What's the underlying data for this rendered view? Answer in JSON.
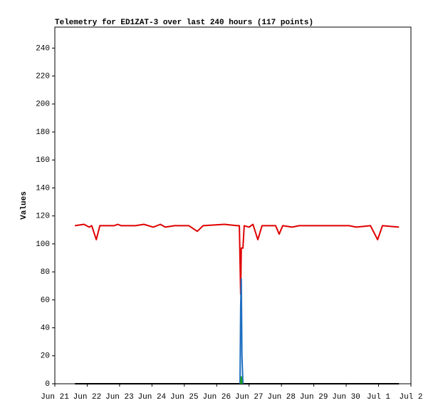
{
  "chart_data": {
    "type": "line",
    "title": "Telemetry for ED1ZAT-3 over last 240 hours (117 points)",
    "ylabel": "Values",
    "xlim": [
      0,
      11
    ],
    "xticks": [
      {
        "value": 0,
        "label": "Jun 21"
      },
      {
        "value": 1,
        "label": "Jun 22"
      },
      {
        "value": 2,
        "label": "Jun 23"
      },
      {
        "value": 3,
        "label": "Jun 24"
      },
      {
        "value": 4,
        "label": "Jun 25"
      },
      {
        "value": 5,
        "label": "Jun 26"
      },
      {
        "value": 6,
        "label": "Jun 27"
      },
      {
        "value": 7,
        "label": "Jun 28"
      },
      {
        "value": 8,
        "label": "Jun 29"
      },
      {
        "value": 9,
        "label": "Jun 30"
      },
      {
        "value": 10,
        "label": "Jul 1"
      },
      {
        "value": 11,
        "label": "Jul 2"
      }
    ],
    "ylim": [
      0,
      255
    ],
    "yticks": [
      0,
      20,
      40,
      60,
      80,
      100,
      120,
      140,
      160,
      180,
      200,
      220,
      240
    ],
    "grid": false,
    "series": [
      {
        "color": "#000000",
        "x": [
          0.62,
          10.63
        ],
        "values": [
          0,
          0
        ]
      },
      {
        "color": "#e00000",
        "x": [
          0.62,
          0.9,
          1.06,
          1.14,
          1.28,
          1.39,
          1.83,
          1.94,
          2.05,
          2.49,
          2.75,
          3.04,
          3.26,
          3.41,
          3.7,
          4.14,
          4.4,
          4.58,
          5.24,
          5.63,
          5.7,
          5.74,
          5.76,
          5.81,
          5.85,
          6.0,
          6.12,
          6.27,
          6.4,
          6.82,
          6.93,
          7.04,
          7.33,
          7.55,
          7.99,
          8.43,
          9.09,
          9.31,
          9.75,
          9.97,
          10.12,
          10.63
        ],
        "values": [
          113,
          114,
          112,
          113,
          103,
          113,
          113,
          114,
          113,
          113,
          114,
          112,
          114,
          112,
          113,
          113,
          109,
          113,
          114,
          113,
          113,
          64,
          97,
          97,
          113,
          112,
          114,
          103,
          113,
          113,
          107,
          113,
          112,
          113,
          113,
          113,
          113,
          112,
          113,
          103,
          113,
          112
        ]
      },
      {
        "color": "#1f6fc0",
        "x": [
          5.72,
          5.74,
          5.76,
          5.78,
          5.81
        ],
        "values": [
          0,
          55,
          75,
          20,
          0
        ]
      },
      {
        "color": "#20a020",
        "x": [
          5.74,
          5.76,
          5.78
        ],
        "values": [
          0,
          5,
          0
        ]
      }
    ]
  }
}
